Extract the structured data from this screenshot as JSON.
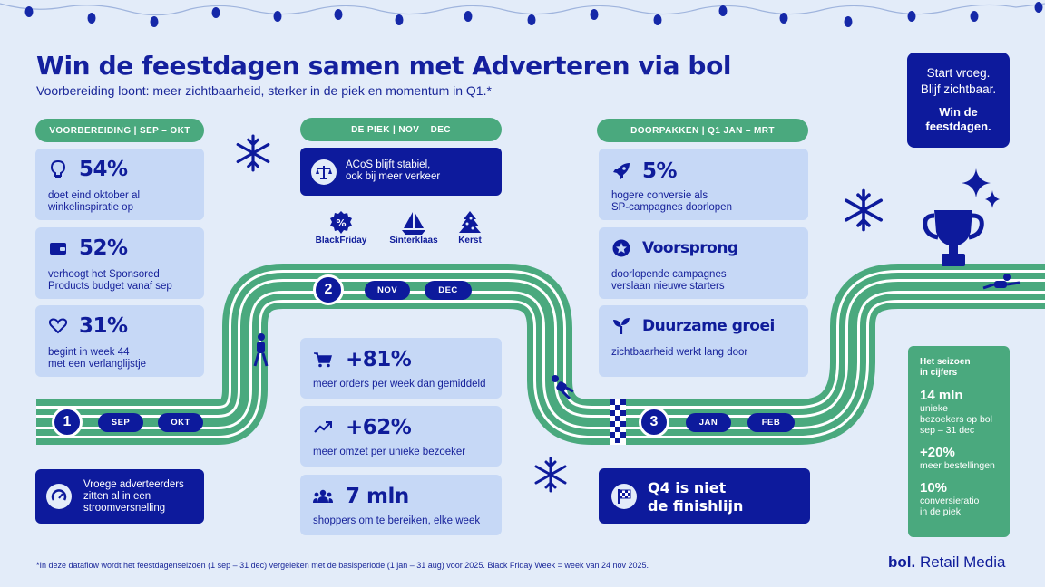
{
  "colors": {
    "navy": "#0d1a9c",
    "green": "#4aa97e",
    "light_card": "#c6d8f6",
    "background": "#e3ecf9"
  },
  "title": "Win de feestdagen samen met Adverteren via bol",
  "subtitle": "Voorbereiding loont: meer zichtbaarheid, sterker in de piek en momentum in Q1.*",
  "cta": {
    "line1": "Start vroeg.",
    "line2": "Blijf zichtbaar.",
    "bold1": "Win de",
    "bold2": "feestdagen."
  },
  "phases": {
    "prep": "VOORBEREIDING  |  SEP – OKT",
    "peak": "DE PIEK  |  NOV – DEC",
    "push": "DOORPAKKEN  |  Q1 JAN – MRT"
  },
  "prep_cards": [
    {
      "icon": "lightbulb-icon",
      "value": "54%",
      "text1": "doet eind oktober al",
      "text2": "winkelinspiratie op"
    },
    {
      "icon": "wallet-icon",
      "value": "52%",
      "text1": "verhoogt het Sponsored",
      "text2": "Products budget vanaf sep"
    },
    {
      "icon": "heart-icon",
      "value": "31%",
      "text1": "begint in week 44",
      "text2": "met een verlanglijstje"
    }
  ],
  "prep_navy": {
    "icon": "speedometer-icon",
    "text1": "Vroege adverteerders",
    "text2": "zitten al in een",
    "text3": "stroomversnelling"
  },
  "peak_navy": {
    "icon": "balance-icon",
    "text1": "ACoS blijft stabiel,",
    "text2": "ook bij meer verkeer"
  },
  "holidays": [
    {
      "icon": "percent-badge-icon",
      "label": "BlackFriday"
    },
    {
      "icon": "boat-icon",
      "label": "Sinterklaas"
    },
    {
      "icon": "tree-icon",
      "label": "Kerst"
    }
  ],
  "peak_cards": [
    {
      "icon": "cart-icon",
      "value": "+81%",
      "text": "meer orders per week dan gemiddeld"
    },
    {
      "icon": "trend-icon",
      "value": "+62%",
      "text": "meer omzet per unieke bezoeker"
    },
    {
      "icon": "people-icon",
      "value": "7 mln",
      "text": "shoppers om te bereiken, elke week"
    }
  ],
  "push_cards": [
    {
      "icon": "rocket-icon",
      "value": "5%",
      "text1": "hogere conversie als",
      "text2": "SP-campagnes doorlopen"
    },
    {
      "icon": "star-icon",
      "value": "Voorsprong",
      "text1": "doorlopende campagnes",
      "text2": "verslaan nieuwe starters"
    },
    {
      "icon": "sprout-icon",
      "value": "Duurzame groei",
      "text1": "zichtbaarheid werkt lang door",
      "text2": ""
    }
  ],
  "push_navy": {
    "icon": "flag-icon",
    "text1": "Q4 is niet",
    "text2": "de finishlijn"
  },
  "track": {
    "steps": [
      "1",
      "2",
      "3"
    ],
    "months1": [
      "SEP",
      "OKT"
    ],
    "months2": [
      "NOV",
      "DEC"
    ],
    "months3": [
      "JAN",
      "FEB"
    ]
  },
  "stats": {
    "heading1": "Het seizoen",
    "heading2": "in cijfers",
    "items": [
      {
        "value": "14 mln",
        "d1": "unieke",
        "d2": "bezoekers op bol",
        "d3": "sep – 31 dec"
      },
      {
        "value": "+20%",
        "d1": "meer bestellingen",
        "d2": "",
        "d3": ""
      },
      {
        "value": "10%",
        "d1": "conversieratio",
        "d2": "in de piek",
        "d3": ""
      }
    ]
  },
  "footnote": "*In deze dataflow wordt het feestdagenseizoen (1 sep – 31 dec) vergeleken met de basisperiode (1 jan – 31 aug) voor 2025. Black Friday Week = week van 24 nov 2025.",
  "brand": {
    "bold": "bol.",
    "rest": " Retail Media"
  }
}
